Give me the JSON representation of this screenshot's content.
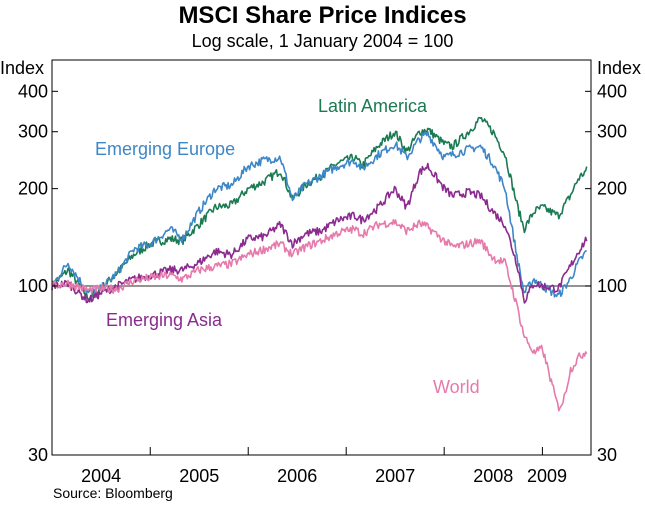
{
  "title": "MSCI Share Price Indices",
  "subtitle": "Log scale, 1 January 2004 = 100",
  "source": "Source: Bloomberg",
  "chart_data": {
    "type": "line",
    "y_scale": "log",
    "ylim": [
      30,
      500
    ],
    "yticks": [
      30,
      100,
      200,
      300,
      400
    ],
    "ylabel_left": "Index",
    "ylabel_right": "Index",
    "xlim": [
      "2004-01-01",
      "2009-07-01"
    ],
    "xtick_labels": [
      "2004",
      "2005",
      "2006",
      "2007",
      "2008",
      "2009"
    ],
    "reference_line": 100,
    "grid": false,
    "legend": "inline labels",
    "series": [
      {
        "name": "Latin America",
        "color": "#1a7a52",
        "points": [
          [
            "2004-01-01",
            100
          ],
          [
            "2004-03-01",
            112
          ],
          [
            "2004-05-15",
            92
          ],
          [
            "2004-07-01",
            98
          ],
          [
            "2004-09-01",
            110
          ],
          [
            "2004-11-01",
            125
          ],
          [
            "2005-01-01",
            135
          ],
          [
            "2005-03-15",
            140
          ],
          [
            "2005-05-01",
            138
          ],
          [
            "2005-07-01",
            155
          ],
          [
            "2005-09-01",
            175
          ],
          [
            "2005-11-01",
            178
          ],
          [
            "2006-01-01",
            200
          ],
          [
            "2006-03-01",
            210
          ],
          [
            "2006-05-01",
            228
          ],
          [
            "2006-06-15",
            185
          ],
          [
            "2006-08-01",
            205
          ],
          [
            "2006-10-01",
            220
          ],
          [
            "2006-12-01",
            240
          ],
          [
            "2007-02-01",
            250
          ],
          [
            "2007-03-01",
            235
          ],
          [
            "2007-05-01",
            272
          ],
          [
            "2007-07-01",
            300
          ],
          [
            "2007-08-15",
            260
          ],
          [
            "2007-10-01",
            300
          ],
          [
            "2007-11-01",
            305
          ],
          [
            "2008-01-01",
            275
          ],
          [
            "2008-02-01",
            270
          ],
          [
            "2008-04-01",
            300
          ],
          [
            "2008-05-15",
            330
          ],
          [
            "2008-07-01",
            300
          ],
          [
            "2008-08-15",
            255
          ],
          [
            "2008-10-01",
            175
          ],
          [
            "2008-10-25",
            150
          ],
          [
            "2008-12-01",
            170
          ],
          [
            "2009-01-01",
            175
          ],
          [
            "2009-03-01",
            165
          ],
          [
            "2009-04-15",
            190
          ],
          [
            "2009-05-15",
            215
          ],
          [
            "2009-06-15",
            228
          ]
        ]
      },
      {
        "name": "Emerging Europe",
        "color": "#3d87c7",
        "points": [
          [
            "2004-01-01",
            100
          ],
          [
            "2004-03-01",
            118
          ],
          [
            "2004-05-15",
            95
          ],
          [
            "2004-07-01",
            98
          ],
          [
            "2004-09-01",
            110
          ],
          [
            "2004-11-01",
            130
          ],
          [
            "2005-01-01",
            135
          ],
          [
            "2005-03-15",
            150
          ],
          [
            "2005-05-01",
            140
          ],
          [
            "2005-07-01",
            170
          ],
          [
            "2005-09-01",
            200
          ],
          [
            "2005-11-01",
            205
          ],
          [
            "2006-01-01",
            235
          ],
          [
            "2006-03-01",
            245
          ],
          [
            "2006-05-01",
            250
          ],
          [
            "2006-06-15",
            185
          ],
          [
            "2006-08-01",
            205
          ],
          [
            "2006-10-01",
            220
          ],
          [
            "2006-12-01",
            235
          ],
          [
            "2007-02-01",
            245
          ],
          [
            "2007-03-01",
            230
          ],
          [
            "2007-05-01",
            255
          ],
          [
            "2007-07-01",
            275
          ],
          [
            "2007-08-15",
            250
          ],
          [
            "2007-10-01",
            285
          ],
          [
            "2007-11-01",
            295
          ],
          [
            "2008-01-01",
            250
          ],
          [
            "2008-02-01",
            255
          ],
          [
            "2008-04-01",
            265
          ],
          [
            "2008-05-15",
            270
          ],
          [
            "2008-07-01",
            240
          ],
          [
            "2008-08-15",
            200
          ],
          [
            "2008-10-01",
            120
          ],
          [
            "2008-10-25",
            95
          ],
          [
            "2008-12-01",
            105
          ],
          [
            "2009-01-01",
            100
          ],
          [
            "2009-03-01",
            93
          ],
          [
            "2009-04-15",
            105
          ],
          [
            "2009-05-15",
            118
          ],
          [
            "2009-06-15",
            128
          ]
        ]
      },
      {
        "name": "Emerging Asia",
        "color": "#8b2a8f",
        "points": [
          [
            "2004-01-01",
            100
          ],
          [
            "2004-03-01",
            102
          ],
          [
            "2004-05-15",
            90
          ],
          [
            "2004-07-01",
            95
          ],
          [
            "2004-09-01",
            100
          ],
          [
            "2004-11-01",
            105
          ],
          [
            "2005-01-01",
            108
          ],
          [
            "2005-03-15",
            112
          ],
          [
            "2005-05-01",
            112
          ],
          [
            "2005-07-01",
            118
          ],
          [
            "2005-09-01",
            128
          ],
          [
            "2005-11-01",
            125
          ],
          [
            "2006-01-01",
            140
          ],
          [
            "2006-03-01",
            142
          ],
          [
            "2006-05-01",
            155
          ],
          [
            "2006-06-15",
            135
          ],
          [
            "2006-08-01",
            145
          ],
          [
            "2006-10-01",
            148
          ],
          [
            "2006-12-01",
            160
          ],
          [
            "2007-02-01",
            165
          ],
          [
            "2007-03-01",
            160
          ],
          [
            "2007-05-01",
            175
          ],
          [
            "2007-07-01",
            200
          ],
          [
            "2007-08-15",
            175
          ],
          [
            "2007-10-01",
            225
          ],
          [
            "2007-11-01",
            235
          ],
          [
            "2008-01-01",
            200
          ],
          [
            "2008-02-01",
            190
          ],
          [
            "2008-04-01",
            195
          ],
          [
            "2008-05-15",
            190
          ],
          [
            "2008-07-01",
            170
          ],
          [
            "2008-08-15",
            155
          ],
          [
            "2008-10-01",
            115
          ],
          [
            "2008-10-25",
            90
          ],
          [
            "2008-12-01",
            102
          ],
          [
            "2009-01-01",
            100
          ],
          [
            "2009-03-01",
            98
          ],
          [
            "2009-04-15",
            115
          ],
          [
            "2009-05-15",
            128
          ],
          [
            "2009-06-15",
            140
          ]
        ]
      },
      {
        "name": "World",
        "color": "#e57aab",
        "points": [
          [
            "2004-01-01",
            100
          ],
          [
            "2004-03-01",
            102
          ],
          [
            "2004-05-15",
            97
          ],
          [
            "2004-07-01",
            98
          ],
          [
            "2004-09-01",
            98
          ],
          [
            "2004-11-01",
            104
          ],
          [
            "2005-01-01",
            106
          ],
          [
            "2005-03-15",
            108
          ],
          [
            "2005-05-01",
            105
          ],
          [
            "2005-07-01",
            112
          ],
          [
            "2005-09-01",
            115
          ],
          [
            "2005-11-01",
            117
          ],
          [
            "2006-01-01",
            125
          ],
          [
            "2006-03-01",
            130
          ],
          [
            "2006-05-01",
            135
          ],
          [
            "2006-06-15",
            125
          ],
          [
            "2006-08-01",
            132
          ],
          [
            "2006-10-01",
            138
          ],
          [
            "2006-12-01",
            146
          ],
          [
            "2007-02-01",
            150
          ],
          [
            "2007-03-01",
            145
          ],
          [
            "2007-05-01",
            155
          ],
          [
            "2007-07-01",
            158
          ],
          [
            "2007-08-15",
            148
          ],
          [
            "2007-10-01",
            156
          ],
          [
            "2007-11-01",
            152
          ],
          [
            "2008-01-01",
            138
          ],
          [
            "2008-02-01",
            132
          ],
          [
            "2008-04-01",
            135
          ],
          [
            "2008-05-15",
            138
          ],
          [
            "2008-07-01",
            122
          ],
          [
            "2008-08-15",
            118
          ],
          [
            "2008-10-01",
            85
          ],
          [
            "2008-10-25",
            70
          ],
          [
            "2008-12-01",
            62
          ],
          [
            "2009-01-01",
            64
          ],
          [
            "2009-03-01",
            42
          ],
          [
            "2009-03-20",
            44
          ],
          [
            "2009-04-15",
            55
          ],
          [
            "2009-05-15",
            60
          ],
          [
            "2009-06-15",
            63
          ]
        ]
      }
    ]
  },
  "labels": {
    "latin_america": "Latin America",
    "emerging_europe": "Emerging Europe",
    "emerging_asia": "Emerging Asia",
    "world": "World"
  }
}
